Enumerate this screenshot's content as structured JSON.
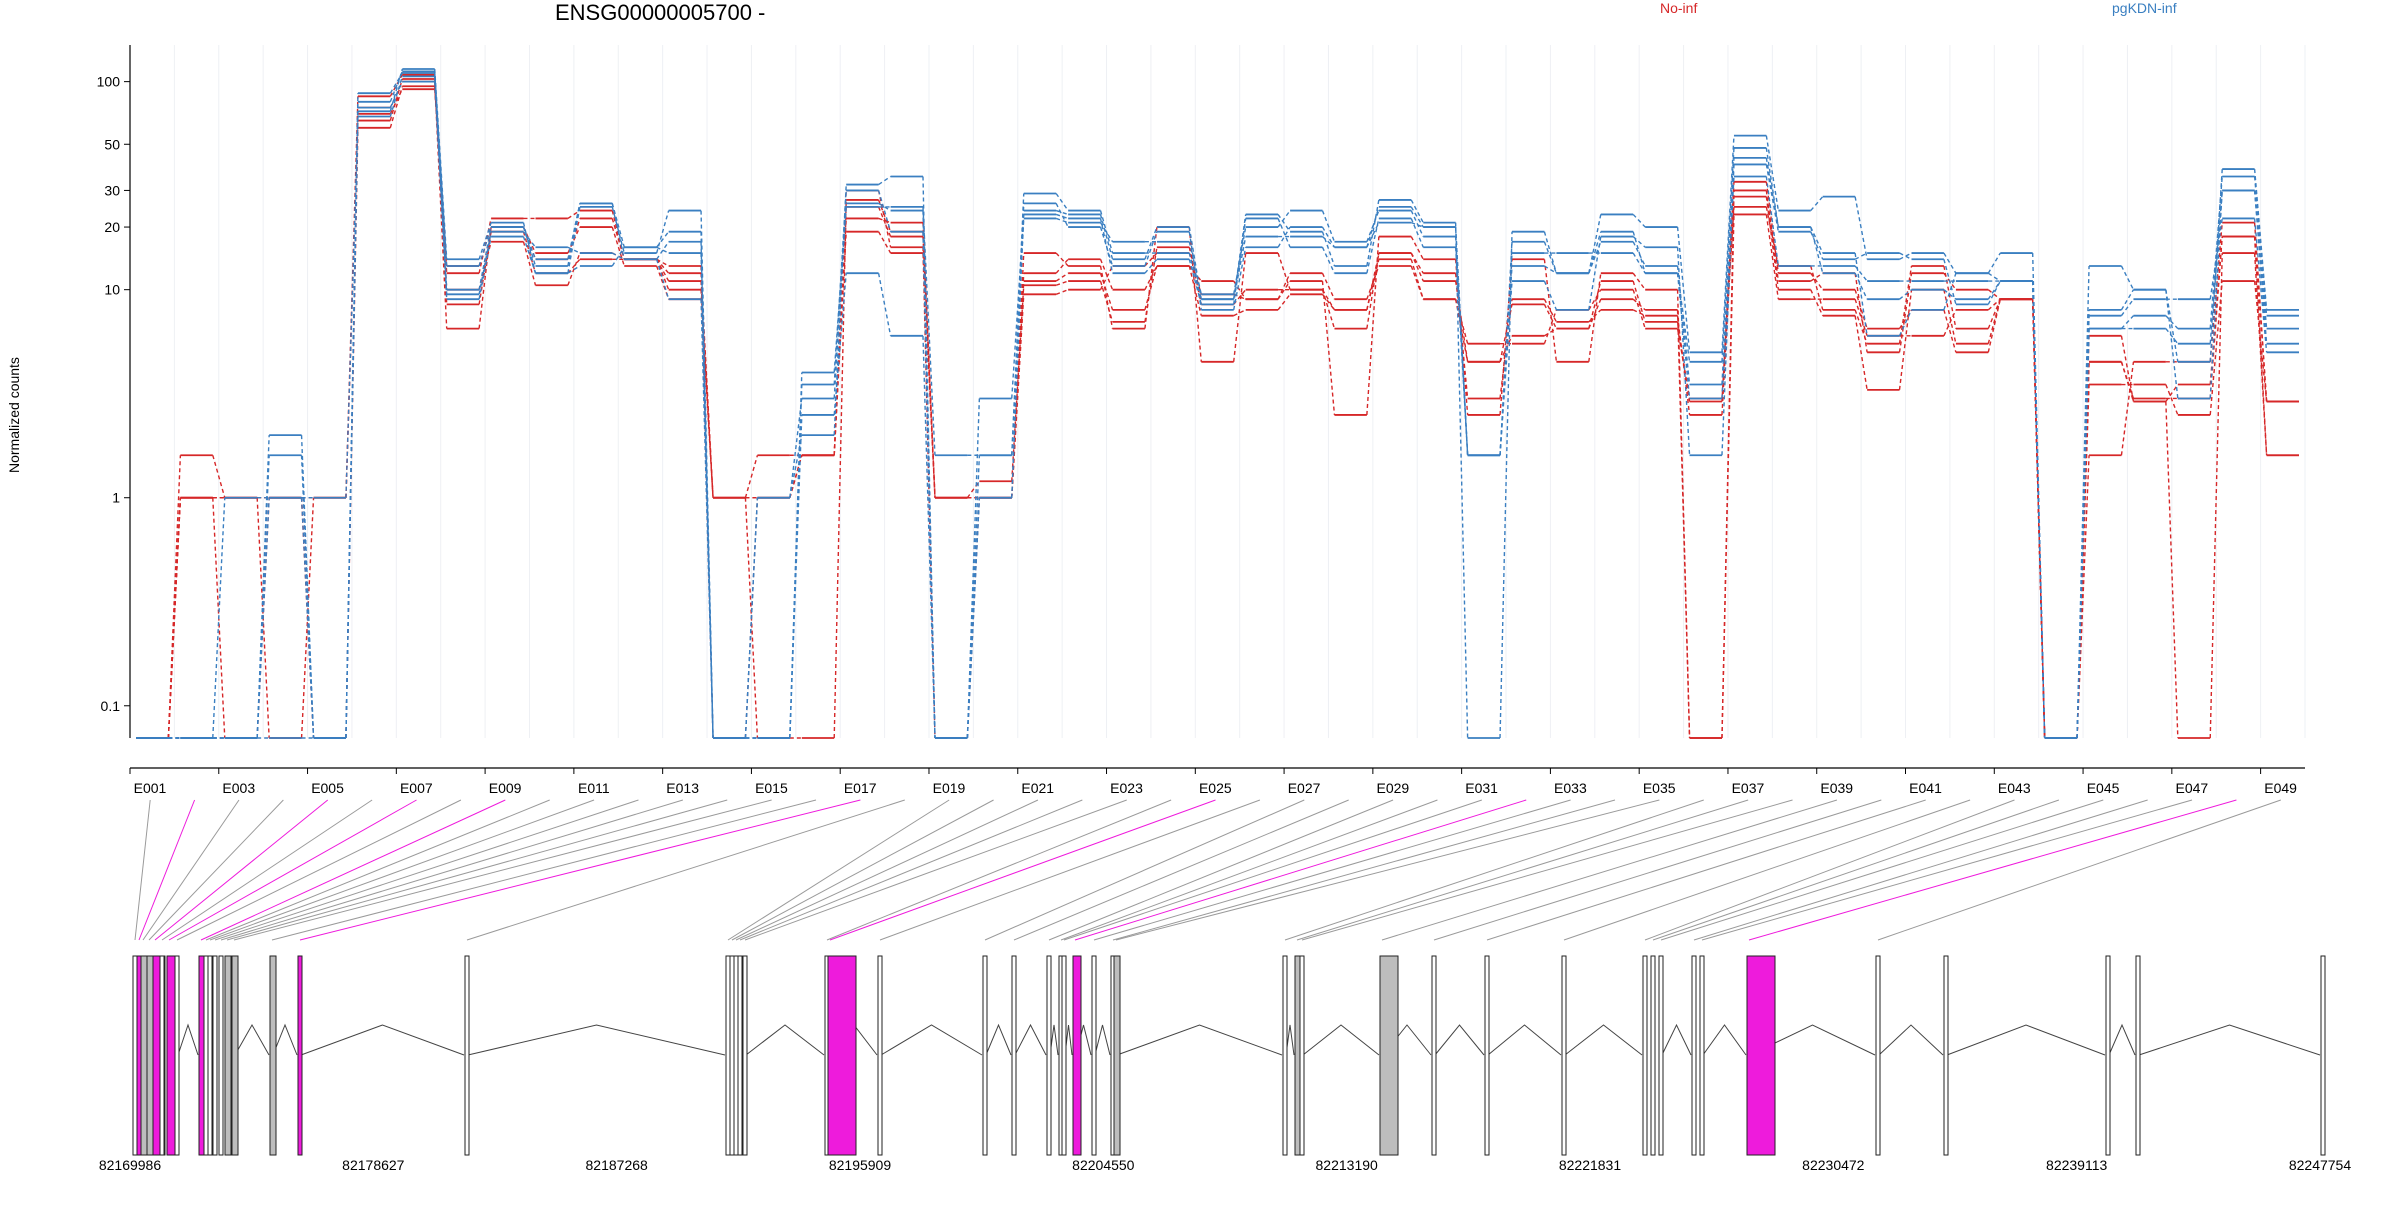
{
  "chart_data": {
    "type": "line",
    "title": "ENSG00000005700 -",
    "xlabel": "",
    "ylabel": "Normalized counts",
    "y_scale": "log",
    "ylim": [
      0.07,
      150
    ],
    "y_ticks": [
      "0.1",
      "1",
      "10",
      "20",
      "30",
      "50",
      "100"
    ],
    "y_tick_values": [
      0.1,
      1,
      10,
      20,
      30,
      50,
      100
    ],
    "legend_placement": "top",
    "categories": [
      "E001",
      "E002",
      "E003",
      "E004",
      "E005",
      "E006",
      "E007",
      "E008",
      "E009",
      "E010",
      "E011",
      "E012",
      "E013",
      "E014",
      "E015",
      "E016",
      "E017",
      "E018",
      "E019",
      "E020",
      "E021",
      "E022",
      "E023",
      "E024",
      "E025",
      "E026",
      "E027",
      "E028",
      "E029",
      "E030",
      "E031",
      "E032",
      "E033",
      "E034",
      "E035",
      "E036",
      "E037",
      "E038",
      "E039",
      "E040",
      "E041",
      "E042",
      "E043",
      "E044",
      "E045",
      "E046",
      "E047",
      "E048",
      "E049"
    ],
    "x_tick_labels": [
      "E001",
      "E003",
      "E005",
      "E007",
      "E009",
      "E011",
      "E013",
      "E015",
      "E017",
      "E019",
      "E021",
      "E023",
      "E025",
      "E027",
      "E029",
      "E031",
      "E033",
      "E035",
      "E037",
      "E039",
      "E041",
      "E043",
      "E045",
      "E047",
      "E049"
    ],
    "groups": [
      {
        "name": "No-inf",
        "color": "#d62728"
      },
      {
        "name": "pgKDN-inf",
        "color": "#3a7fc1"
      }
    ],
    "series": [
      {
        "group": "No-inf",
        "values": [
          0.07,
          1.6,
          1,
          1,
          0.07,
          75,
          100,
          6.5,
          20,
          15,
          20,
          13,
          9,
          1,
          1.6,
          1.6,
          19,
          15,
          1,
          1,
          15,
          13,
          6.5,
          20,
          4.5,
          15,
          10,
          8,
          15,
          11,
          4.5,
          8.5,
          6.5,
          9,
          8,
          0.07,
          23,
          9,
          9,
          6,
          6,
          8,
          9,
          0.07,
          4.5,
          2.9,
          0.07,
          15,
          1.6
        ]
      },
      {
        "group": "No-inf",
        "values": [
          0.07,
          1,
          0.07,
          1,
          0.07,
          60,
          95,
          12,
          22,
          22,
          24,
          14,
          13,
          0.07,
          1,
          1.6,
          30,
          16,
          0.07,
          1,
          12,
          14,
          10,
          13,
          11,
          9,
          11,
          2.5,
          18,
          14,
          2.5,
          14,
          4.5,
          12,
          10,
          0.07,
          30,
          11,
          12,
          5,
          12,
          10,
          9,
          0.07,
          1.6,
          4.5,
          4.5,
          21,
          2.9
        ]
      },
      {
        "group": "No-inf",
        "values": [
          0.07,
          1,
          1,
          0.07,
          1,
          85,
          108,
          8.5,
          19,
          12,
          14,
          14,
          11,
          1,
          0.07,
          0.07,
          27,
          19,
          1,
          1,
          9.5,
          10,
          13,
          15,
          9.5,
          9,
          12,
          9,
          13,
          9,
          5.5,
          5.5,
          8,
          10,
          6.5,
          3,
          25,
          13,
          8,
          5.5,
          13,
          6.5,
          9,
          0.07,
          4.5,
          3,
          3,
          18,
          1.6
        ]
      },
      {
        "group": "No-inf",
        "values": [
          0.07,
          1,
          1,
          1,
          1,
          65,
          103,
          10,
          17,
          10.5,
          15,
          14,
          10,
          1,
          1,
          1.6,
          25,
          18,
          1,
          1.2,
          10.5,
          11,
          7,
          16,
          8.5,
          10,
          10,
          6.5,
          15,
          12,
          3,
          9,
          7,
          8,
          7.5,
          2.5,
          28,
          10,
          7.5,
          3.3,
          10,
          5.5,
          9,
          0.07,
          3.5,
          3.5,
          2.5,
          11,
          2.9
        ]
      },
      {
        "group": "No-inf",
        "values": [
          0.07,
          1,
          1,
          1,
          1,
          70,
          92,
          13,
          20,
          14,
          22,
          14,
          12,
          1,
          1,
          1.6,
          22,
          21,
          1,
          1,
          11,
          12,
          8,
          13,
          7.5,
          8,
          9.5,
          8,
          14,
          9,
          4.5,
          6,
          6.5,
          11,
          7,
          2.9,
          33,
          12,
          10,
          6.5,
          8,
          5,
          9,
          0.07,
          6,
          2.9,
          3.5,
          18,
          2.9
        ]
      },
      {
        "group": "pgKDN-inf",
        "values": [
          0.07,
          0.07,
          0.07,
          1.6,
          0.07,
          75,
          100,
          9.5,
          19,
          16,
          15,
          14,
          9,
          0.07,
          0.07,
          2.5,
          12,
          6,
          0.07,
          3,
          23,
          22,
          12,
          14,
          8.5,
          22,
          16,
          12,
          22,
          16,
          1.6,
          11,
          8,
          18,
          16,
          1.6,
          40,
          19,
          14,
          15,
          14,
          8.5,
          11,
          0.07,
          7.5,
          9,
          9,
          22,
          5
        ]
      },
      {
        "group": "pgKDN-inf",
        "values": [
          0.07,
          0.07,
          0.07,
          1,
          0.07,
          72,
          115,
          14,
          21,
          12,
          13,
          16,
          15,
          0.07,
          0.07,
          4,
          25,
          25,
          1.6,
          1.6,
          29,
          24,
          15,
          15,
          9,
          23,
          19,
          13,
          27,
          21,
          0.07,
          19,
          12,
          23,
          20,
          5,
          55,
          24,
          28,
          14,
          15,
          12,
          15,
          0.07,
          6.5,
          7.5,
          6.5,
          35,
          7.5
        ]
      },
      {
        "group": "pgKDN-inf",
        "values": [
          0.07,
          0.07,
          0.07,
          2,
          0.07,
          80,
          112,
          10,
          20,
          14,
          26,
          14,
          17,
          0.07,
          1,
          2,
          32,
          35,
          0.07,
          1,
          26,
          20,
          13,
          19,
          8,
          16,
          20,
          16,
          25,
          20,
          1.6,
          17,
          12,
          17,
          13,
          3.5,
          43,
          20,
          12,
          9,
          10,
          9,
          11,
          0.07,
          13,
          10,
          4.5,
          38,
          8
        ]
      },
      {
        "group": "pgKDN-inf",
        "values": [
          0.07,
          0.07,
          1,
          1,
          1,
          68,
          106,
          9,
          18,
          12,
          25,
          15,
          24,
          0.07,
          1,
          3,
          26,
          24,
          0.07,
          1.6,
          22,
          21,
          17,
          17,
          9.5,
          20,
          24,
          17,
          24,
          18,
          1.6,
          15,
          15,
          15,
          12,
          4.5,
          48,
          20,
          15,
          6,
          8,
          12,
          11,
          0.07,
          6.5,
          6.5,
          5.5,
          30,
          5.5
        ]
      },
      {
        "group": "pgKDN-inf",
        "values": [
          0.07,
          0.07,
          0.07,
          0.07,
          0.07,
          88,
          110,
          13,
          20,
          13,
          26,
          16,
          19,
          0.07,
          0.07,
          3.5,
          30,
          19,
          0.07,
          1,
          24,
          23,
          14,
          20,
          9,
          18,
          18,
          16,
          21,
          20,
          1.6,
          13,
          12,
          19,
          12,
          3,
          35,
          13,
          13,
          11,
          11,
          11,
          11,
          0.07,
          8,
          10,
          3,
          30,
          6.5
        ]
      }
    ],
    "gene_model": {
      "coordinate_labels": [
        "82169986",
        "82178627",
        "82187268",
        "82195909",
        "82204550",
        "82213190",
        "82221831",
        "82230472",
        "82239113",
        "82247754"
      ],
      "highlight_color": "#ee1bdc",
      "intron_color": "#bdbdbd",
      "exon_color": "#ffffff"
    }
  }
}
